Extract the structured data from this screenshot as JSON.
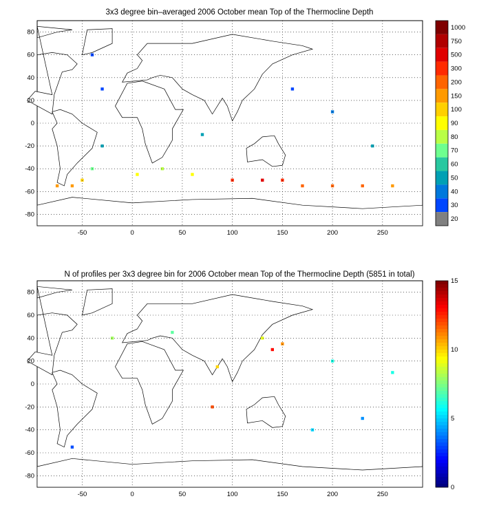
{
  "chart_data": [
    {
      "type": "heatmap",
      "title": "3x3 degree bin–averaged 2006 October mean Top of the Thermocline Depth",
      "xticks": [
        "-50",
        "0",
        "50",
        "100",
        "150",
        "200",
        "250"
      ],
      "yticks": [
        "80",
        "60",
        "40",
        "20",
        "0",
        "-20",
        "-40",
        "-60",
        "-80"
      ],
      "xlim": [
        -95,
        290
      ],
      "ylim": [
        -90,
        90
      ],
      "grid": true,
      "colorbar": {
        "labels": [
          "1000",
          "750",
          "500",
          "300",
          "200",
          "150",
          "100",
          "90",
          "80",
          "70",
          "60",
          "50",
          "40",
          "30",
          "20"
        ],
        "colors": [
          "#7f0000",
          "#b00000",
          "#e00000",
          "#ff2a00",
          "#ff6400",
          "#ff9a00",
          "#ffd000",
          "#ffff00",
          "#b9ff46",
          "#6eff8f",
          "#28c8a0",
          "#00a0b4",
          "#0078dc",
          "#0046ff",
          "#808080"
        ]
      },
      "land_color": "#ffffff",
      "bins": [
        {
          "lon": -75,
          "lat": -55,
          "v": 5
        },
        {
          "lon": -60,
          "lat": -55,
          "v": 5
        },
        {
          "lon": -50,
          "lat": -50,
          "v": 6
        },
        {
          "lon": -40,
          "lat": -40,
          "v": 9
        },
        {
          "lon": -30,
          "lat": -20,
          "v": 11
        },
        {
          "lon": -30,
          "lat": 30,
          "v": 13
        },
        {
          "lon": -40,
          "lat": 60,
          "v": 13
        },
        {
          "lon": 5,
          "lat": -45,
          "v": 7
        },
        {
          "lon": 30,
          "lat": -40,
          "v": 8
        },
        {
          "lon": 60,
          "lat": -45,
          "v": 7
        },
        {
          "lon": 70,
          "lat": -10,
          "v": 11
        },
        {
          "lon": 100,
          "lat": -50,
          "v": 3
        },
        {
          "lon": 130,
          "lat": -50,
          "v": 2
        },
        {
          "lon": 150,
          "lat": -50,
          "v": 3
        },
        {
          "lon": 170,
          "lat": -55,
          "v": 4
        },
        {
          "lon": 200,
          "lat": -55,
          "v": 4
        },
        {
          "lon": 230,
          "lat": -55,
          "v": 4
        },
        {
          "lon": 260,
          "lat": -55,
          "v": 5
        },
        {
          "lon": 160,
          "lat": 30,
          "v": 13
        },
        {
          "lon": 200,
          "lat": 10,
          "v": 12
        },
        {
          "lon": 240,
          "lat": -20,
          "v": 11
        }
      ]
    },
    {
      "type": "heatmap",
      "title": "N of profiles per 3x3 degree bin for 2006 October mean Top of the Thermocline Depth  (5851 in total)",
      "xticks": [
        "-50",
        "0",
        "50",
        "100",
        "150",
        "200",
        "250"
      ],
      "yticks": [
        "80",
        "60",
        "40",
        "20",
        "0",
        "-20",
        "-40",
        "-60",
        "-80"
      ],
      "xlim": [
        -95,
        290
      ],
      "ylim": [
        -90,
        90
      ],
      "grid": true,
      "colorbar": {
        "labels": [
          "15",
          "10",
          "5",
          "0"
        ],
        "range": [
          0,
          15
        ]
      },
      "land_color": "#ffffff",
      "bins": [
        {
          "lon": 140,
          "lat": 30,
          "v": 13
        },
        {
          "lon": 150,
          "lat": 35,
          "v": 11
        },
        {
          "lon": 130,
          "lat": 40,
          "v": 9
        },
        {
          "lon": 85,
          "lat": 15,
          "v": 10
        },
        {
          "lon": 80,
          "lat": -20,
          "v": 12
        },
        {
          "lon": 200,
          "lat": 20,
          "v": 6
        },
        {
          "lon": -20,
          "lat": 40,
          "v": 8
        },
        {
          "lon": 40,
          "lat": 45,
          "v": 7
        },
        {
          "lon": 180,
          "lat": -40,
          "v": 5
        },
        {
          "lon": 230,
          "lat": -30,
          "v": 4
        },
        {
          "lon": -60,
          "lat": -55,
          "v": 3
        },
        {
          "lon": 260,
          "lat": 10,
          "v": 6
        }
      ]
    }
  ]
}
